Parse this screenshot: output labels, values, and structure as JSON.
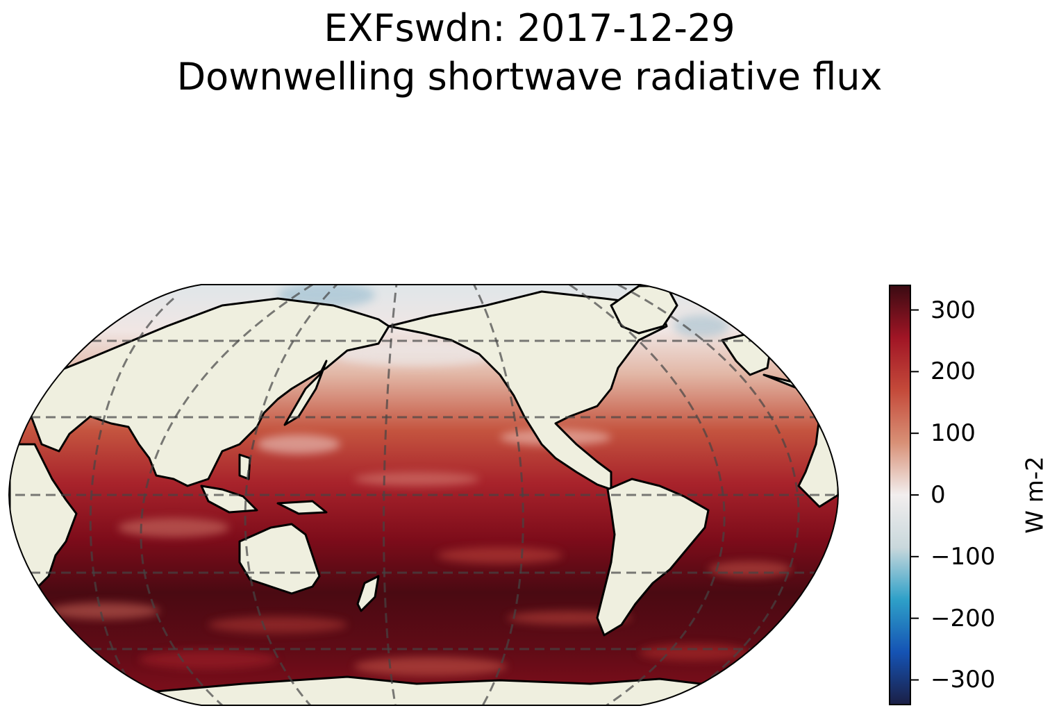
{
  "title": {
    "line1": "EXFswdn: 2017-12-29",
    "line2": "Downwelling shortwave radiative flux"
  },
  "map": {
    "projection": "Robinson (Pacific-centered)",
    "land_color": "#efefdf",
    "coastline_color": "#000000",
    "gridline_color": "#555555",
    "gridline_style": "dashed"
  },
  "colorbar": {
    "label": "W m-2",
    "vmin": -340,
    "vmax": 340,
    "ticks": [
      {
        "value": 300,
        "label": "300"
      },
      {
        "value": 200,
        "label": "200"
      },
      {
        "value": 100,
        "label": "100"
      },
      {
        "value": 0,
        "label": "0"
      },
      {
        "value": -100,
        "label": "−100"
      },
      {
        "value": -200,
        "label": "−200"
      },
      {
        "value": -300,
        "label": "−300"
      }
    ],
    "colormap": [
      "#1b1f45",
      "#1553b4",
      "#2ea0c8",
      "#c9d8dc",
      "#f2eeee",
      "#d89076",
      "#c44a3a",
      "#a01525",
      "#3a0b12"
    ]
  }
}
